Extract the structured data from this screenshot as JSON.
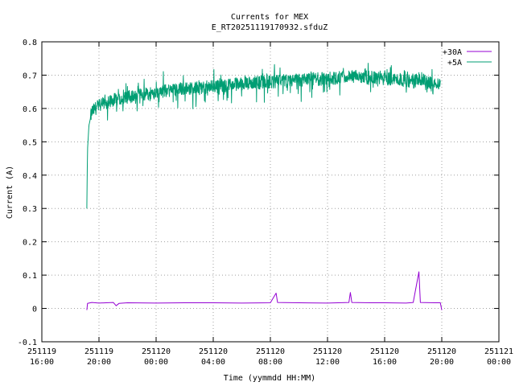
{
  "chart_data": {
    "type": "line",
    "title": "Currents for MEX",
    "subtitle": "E_RT20251119170932.sfduZ",
    "xlabel": "Time (yymmdd HH:MM)",
    "ylabel": "Current (A)",
    "ylim": [
      -0.1,
      0.8
    ],
    "xlim_hours": [
      0,
      32
    ],
    "grid": true,
    "legend_position": "top-right",
    "y_ticks": [
      -0.1,
      0,
      0.1,
      0.2,
      0.3,
      0.4,
      0.5,
      0.6,
      0.7,
      0.8
    ],
    "y_tick_labels": [
      "-0.1",
      "0",
      "0.1",
      "0.2",
      "0.3",
      "0.4",
      "0.5",
      "0.6",
      "0.7",
      "0.8"
    ],
    "x_ticks": [
      {
        "hour": 0,
        "date": "251119",
        "time": "16:00"
      },
      {
        "hour": 4,
        "date": "251119",
        "time": "20:00"
      },
      {
        "hour": 8,
        "date": "251120",
        "time": "00:00"
      },
      {
        "hour": 12,
        "date": "251120",
        "time": "04:00"
      },
      {
        "hour": 16,
        "date": "251120",
        "time": "08:00"
      },
      {
        "hour": 20,
        "date": "251120",
        "time": "12:00"
      },
      {
        "hour": 24,
        "date": "251120",
        "time": "16:00"
      },
      {
        "hour": 28,
        "date": "251120",
        "time": "20:00"
      },
      {
        "hour": 32,
        "date": "251121",
        "time": "00:00"
      }
    ],
    "series": [
      {
        "name": "+30A",
        "color": "#9400d3",
        "points": [
          [
            3.15,
            -0.005
          ],
          [
            3.2,
            0.015
          ],
          [
            3.5,
            0.018
          ],
          [
            4.0,
            0.016
          ],
          [
            4.5,
            0.017
          ],
          [
            5.0,
            0.018
          ],
          [
            5.2,
            0.008
          ],
          [
            5.4,
            0.015
          ],
          [
            6.0,
            0.017
          ],
          [
            8.0,
            0.016
          ],
          [
            10.0,
            0.017
          ],
          [
            12.0,
            0.017
          ],
          [
            14.0,
            0.016
          ],
          [
            16.0,
            0.017
          ],
          [
            16.4,
            0.046
          ],
          [
            16.5,
            0.018
          ],
          [
            18.0,
            0.017
          ],
          [
            20.0,
            0.016
          ],
          [
            21.5,
            0.018
          ],
          [
            21.6,
            0.048
          ],
          [
            21.7,
            0.018
          ],
          [
            23.0,
            0.017
          ],
          [
            24.0,
            0.017
          ],
          [
            25.5,
            0.016
          ],
          [
            26.0,
            0.018
          ],
          [
            26.4,
            0.11
          ],
          [
            26.5,
            0.018
          ],
          [
            27.5,
            0.017
          ],
          [
            27.9,
            0.017
          ],
          [
            28.0,
            -0.005
          ]
        ]
      },
      {
        "name": "+5A",
        "color": "#009e73",
        "points": [
          [
            3.15,
            0.3
          ],
          [
            3.2,
            0.48
          ],
          [
            3.3,
            0.55
          ],
          [
            3.5,
            0.59
          ],
          [
            4.0,
            0.61
          ],
          [
            5.0,
            0.625
          ],
          [
            6.0,
            0.635
          ],
          [
            7.0,
            0.64
          ],
          [
            8.0,
            0.65
          ],
          [
            10.0,
            0.66
          ],
          [
            12.0,
            0.665
          ],
          [
            14.0,
            0.675
          ],
          [
            16.0,
            0.68
          ],
          [
            18.0,
            0.685
          ],
          [
            20.0,
            0.69
          ],
          [
            22.0,
            0.695
          ],
          [
            24.0,
            0.69
          ],
          [
            25.5,
            0.685
          ],
          [
            26.0,
            0.68
          ],
          [
            26.5,
            0.69
          ],
          [
            27.0,
            0.68
          ],
          [
            27.9,
            0.675
          ]
        ]
      }
    ]
  }
}
